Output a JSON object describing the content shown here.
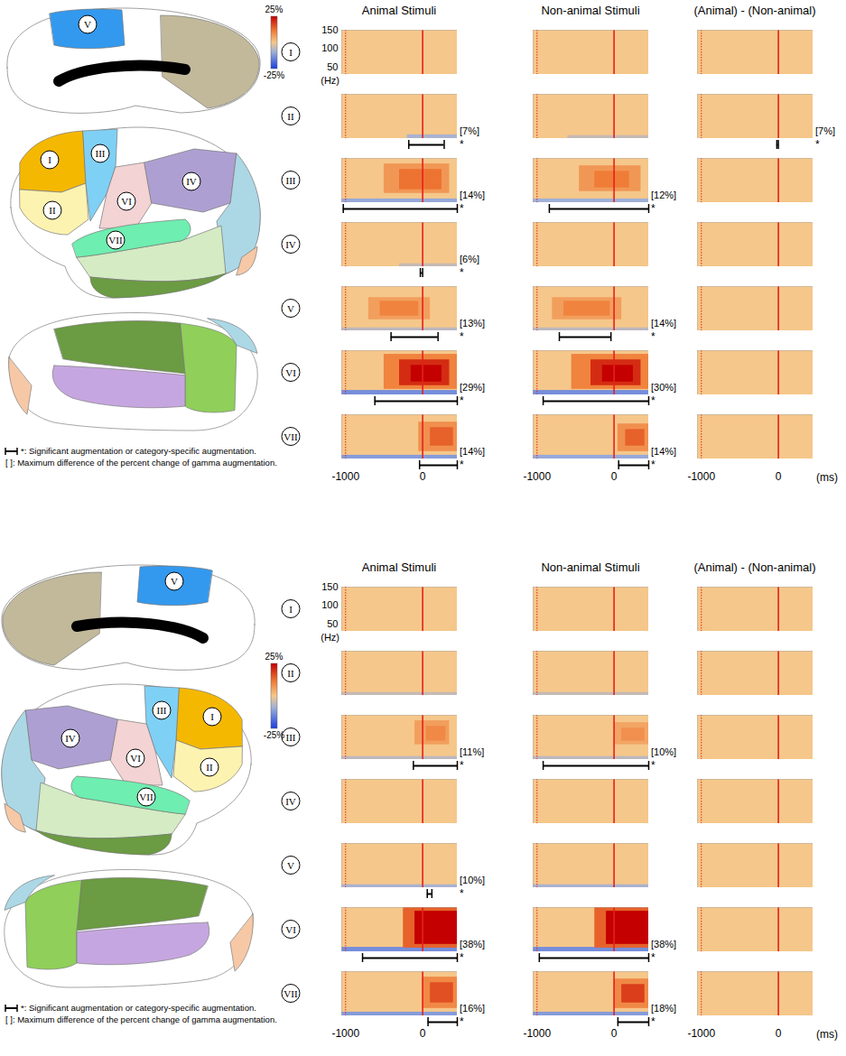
{
  "chart_data": [
    {
      "type": "heatmap",
      "columns": [
        "Animal Stimuli",
        "Non-animal Stimuli",
        "(Animal) - (Non-animal)"
      ],
      "rows": [
        "I",
        "II",
        "III",
        "IV",
        "V",
        "VI",
        "VII"
      ],
      "xlim": [
        -1050,
        450
      ],
      "xticks": [
        -1000,
        0
      ],
      "xlabel": "(ms)",
      "ylim": [
        30,
        150
      ],
      "yticks": [
        50,
        100,
        150
      ],
      "ylabel": "(Hz)",
      "ref_lines": [
        {
          "x": -1000,
          "line_style": "dotted",
          "color": "#e8201c"
        },
        {
          "x": 0,
          "line_style": "solid",
          "color": "#e8201c"
        }
      ],
      "color_bar": {
        "lim": [
          -25,
          25
        ],
        "ticks": [
          {
            "value": 25,
            "label": "25%"
          },
          {
            "value": -25,
            "label": "-25%"
          }
        ]
      },
      "background": 0,
      "significance_label": "*",
      "annotations": [
        "*: Significant augmentation or category-specific augmentation.",
        "[ ]: Maximum difference of the percent change of gamma augmentation."
      ],
      "panels": [
        [
          {
            "cells": []
          },
          {
            "cells": []
          },
          {
            "cells": []
          }
        ],
        [
          {
            "cells": [
              [
                -200,
                450,
                30,
                40,
                -8
              ]
            ],
            "significance": [
              -180,
              280
            ],
            "max_diff": {
              "value": 7,
              "label": "[7%]"
            }
          },
          {
            "cells": [
              [
                -600,
                450,
                30,
                38,
                -5
              ]
            ]
          },
          {
            "cells": [],
            "significance": [
              -20,
              0
            ],
            "max_diff": {
              "value": 7,
              "label": "[7%]"
            }
          }
        ],
        [
          {
            "cells": [
              [
                -1050,
                450,
                30,
                40,
                -10
              ],
              [
                -500,
                350,
                55,
                135,
                7
              ],
              [
                -300,
                250,
                65,
                120,
                12
              ]
            ],
            "significance": [
              -1030,
              450
            ],
            "max_diff": {
              "value": 14,
              "label": "[14%]"
            }
          },
          {
            "cells": [
              [
                -1050,
                450,
                30,
                40,
                -9
              ],
              [
                -450,
                350,
                60,
                130,
                7
              ],
              [
                -250,
                200,
                70,
                115,
                11
              ]
            ],
            "significance": [
              -840,
              450
            ],
            "max_diff": {
              "value": 12,
              "label": "[12%]"
            }
          },
          {
            "cells": []
          }
        ],
        [
          {
            "cells": [
              [
                -300,
                450,
                30,
                38,
                -5
              ]
            ],
            "significance": [
              -30,
              0
            ],
            "max_diff": {
              "value": 6,
              "label": "[6%]"
            }
          },
          {
            "cells": []
          },
          {
            "cells": []
          }
        ],
        [
          {
            "cells": [
              [
                -1050,
                450,
                30,
                38,
                -6
              ],
              [
                -700,
                100,
                60,
                120,
                6
              ],
              [
                -550,
                -50,
                70,
                110,
                10
              ]
            ],
            "significance": [
              -410,
              200
            ],
            "max_diff": {
              "value": 13,
              "label": "[13%]"
            }
          },
          {
            "cells": [
              [
                -1050,
                450,
                30,
                38,
                -6
              ],
              [
                -800,
                100,
                60,
                120,
                6
              ],
              [
                -650,
                -50,
                70,
                110,
                10
              ]
            ],
            "significance": [
              -710,
              -40
            ],
            "max_diff": {
              "value": 14,
              "label": "[14%]"
            }
          },
          {
            "cells": []
          }
        ],
        [
          {
            "cells": [
              [
                -1050,
                450,
                30,
                42,
                -14
              ],
              [
                -500,
                450,
                45,
                140,
                10
              ],
              [
                -300,
                350,
                55,
                125,
                20
              ],
              [
                -150,
                250,
                65,
                110,
                29
              ]
            ],
            "significance": [
              -620,
              450
            ],
            "max_diff": {
              "value": 29,
              "label": "[29%]"
            }
          },
          {
            "cells": [
              [
                -1050,
                450,
                30,
                42,
                -14
              ],
              [
                -550,
                450,
                45,
                140,
                10
              ],
              [
                -300,
                350,
                55,
                125,
                20
              ],
              [
                -150,
                250,
                65,
                110,
                30
              ]
            ],
            "significance": [
              -920,
              450
            ],
            "max_diff": {
              "value": 30,
              "label": "[30%]"
            }
          },
          {
            "cells": []
          }
        ],
        [
          {
            "cells": [
              [
                -1050,
                450,
                30,
                40,
                -12
              ],
              [
                -50,
                450,
                50,
                130,
                8
              ],
              [
                100,
                400,
                65,
                115,
                14
              ]
            ],
            "significance": [
              -40,
              450
            ],
            "max_diff": {
              "value": 14,
              "label": "[14%]"
            }
          },
          {
            "cells": [
              [
                -1050,
                450,
                30,
                40,
                -10
              ],
              [
                50,
                450,
                50,
                125,
                8
              ],
              [
                150,
                400,
                65,
                110,
                14
              ]
            ],
            "significance": [
              60,
              450
            ],
            "max_diff": {
              "value": 14,
              "label": "[14%]"
            }
          },
          {
            "cells": []
          }
        ]
      ]
    },
    {
      "type": "heatmap",
      "columns": [
        "Animal Stimuli",
        "Non-animal Stimuli",
        "(Animal) - (Non-animal)"
      ],
      "rows": [
        "I",
        "II",
        "III",
        "IV",
        "V",
        "VI",
        "VII"
      ],
      "xlim": [
        -1050,
        450
      ],
      "xticks": [
        -1000,
        0
      ],
      "xlabel": "(ms)",
      "ylim": [
        30,
        150
      ],
      "yticks": [
        50,
        100,
        150
      ],
      "ylabel": "(Hz)",
      "ref_lines": [
        {
          "x": -1000,
          "line_style": "dotted",
          "color": "#e8201c"
        },
        {
          "x": 0,
          "line_style": "solid",
          "color": "#e8201c"
        }
      ],
      "color_bar": {
        "lim": [
          -25,
          25
        ],
        "ticks": [
          {
            "value": 25,
            "label": "25%"
          },
          {
            "value": -25,
            "label": "-25%"
          }
        ]
      },
      "background": 0,
      "significance_label": "*",
      "annotations": [
        "*: Significant augmentation or category-specific augmentation.",
        "[ ]: Maximum difference of the percent change of gamma augmentation."
      ],
      "panels": [
        [
          {
            "cells": []
          },
          {
            "cells": []
          },
          {
            "cells": []
          }
        ],
        [
          {
            "cells": [
              [
                -1050,
                450,
                30,
                38,
                -5
              ]
            ]
          },
          {
            "cells": [
              [
                -1050,
                450,
                30,
                38,
                -5
              ]
            ]
          },
          {
            "cells": []
          }
        ],
        [
          {
            "cells": [
              [
                -1050,
                450,
                30,
                38,
                -6
              ],
              [
                -100,
                350,
                70,
                135,
                6
              ],
              [
                50,
                300,
                80,
                120,
                9
              ]
            ],
            "significance": [
              -120,
              450
            ],
            "max_diff": {
              "value": 11,
              "label": "[11%]"
            }
          },
          {
            "cells": [
              [
                -1050,
                450,
                30,
                38,
                -6
              ],
              [
                0,
                450,
                70,
                130,
                5
              ],
              [
                100,
                400,
                80,
                115,
                8
              ]
            ],
            "significance": [
              -920,
              450
            ],
            "max_diff": {
              "value": 10,
              "label": "[10%]"
            }
          },
          {
            "cells": []
          }
        ],
        [
          {
            "cells": []
          },
          {
            "cells": []
          },
          {
            "cells": []
          }
        ],
        [
          {
            "cells": [
              [
                -1050,
                450,
                30,
                38,
                -8
              ]
            ],
            "significance": [
              60,
              120
            ],
            "max_diff": {
              "value": 10,
              "label": "[10%]"
            }
          },
          {
            "cells": [
              [
                -1050,
                450,
                30,
                38,
                -8
              ]
            ]
          },
          {
            "cells": []
          }
        ],
        [
          {
            "cells": [
              [
                -1050,
                450,
                30,
                42,
                -14
              ],
              [
                -250,
                450,
                40,
                150,
                14
              ],
              [
                -100,
                450,
                50,
                140,
                28
              ],
              [
                0,
                450,
                60,
                125,
                38
              ]
            ],
            "significance": [
              -780,
              450
            ],
            "max_diff": {
              "value": 38,
              "label": "[38%]"
            }
          },
          {
            "cells": [
              [
                -1050,
                450,
                30,
                42,
                -14
              ],
              [
                -250,
                450,
                40,
                150,
                14
              ],
              [
                -100,
                450,
                50,
                140,
                28
              ],
              [
                0,
                450,
                60,
                125,
                38
              ]
            ],
            "significance": [
              -970,
              450
            ],
            "max_diff": {
              "value": 38,
              "label": "[38%]"
            }
          },
          {
            "cells": []
          }
        ],
        [
          {
            "cells": [
              [
                -1050,
                450,
                30,
                40,
                -12
              ],
              [
                0,
                450,
                50,
                135,
                9
              ],
              [
                100,
                400,
                65,
                120,
                16
              ]
            ],
            "significance": [
              70,
              450
            ],
            "max_diff": {
              "value": 16,
              "label": "[16%]"
            }
          },
          {
            "cells": [
              [
                -1050,
                450,
                30,
                40,
                -12
              ],
              [
                0,
                450,
                50,
                130,
                9
              ],
              [
                100,
                400,
                65,
                115,
                18
              ]
            ],
            "significance": [
              50,
              450
            ],
            "max_diff": {
              "value": 18,
              "label": "[18%]"
            }
          },
          {
            "cells": []
          }
        ]
      ]
    }
  ]
}
